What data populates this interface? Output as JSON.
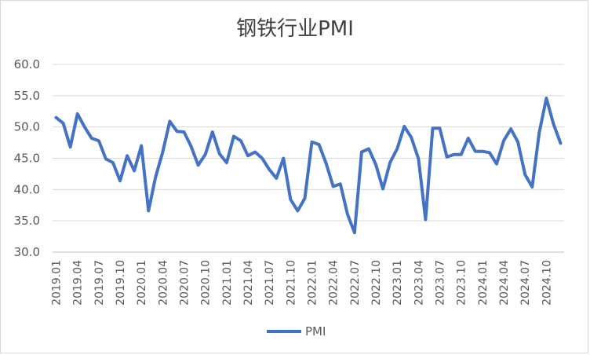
{
  "chart_data": {
    "type": "line",
    "title": "钢铁行业PMI",
    "xlabel": "",
    "ylabel": "",
    "ylim": [
      30,
      60
    ],
    "yticks": [
      "30.0",
      "35.0",
      "40.0",
      "45.0",
      "50.0",
      "55.0",
      "60.0"
    ],
    "grid": true,
    "legend_position": "bottom",
    "line_color": "#4472C4",
    "x": [
      "2019.01",
      "2019.02",
      "2019.03",
      "2019.04",
      "2019.05",
      "2019.06",
      "2019.07",
      "2019.08",
      "2019.09",
      "2019.10",
      "2019.11",
      "2019.12",
      "2020.01",
      "2020.02",
      "2020.03",
      "2020.04",
      "2020.05",
      "2020.06",
      "2020.07",
      "2020.08",
      "2020.09",
      "2020.10",
      "2020.11",
      "2020.12",
      "2021.01",
      "2021.02",
      "2021.03",
      "2021.04",
      "2021.05",
      "2021.06",
      "2021.07",
      "2021.08",
      "2021.09",
      "2021.10",
      "2021.11",
      "2021.12",
      "2022.01",
      "2022.02",
      "2022.03",
      "2022.04",
      "2022.05",
      "2022.06",
      "2022.07",
      "2022.08",
      "2022.09",
      "2022.10",
      "2022.11",
      "2022.12",
      "2023.01",
      "2023.02",
      "2023.03",
      "2023.04",
      "2023.05",
      "2023.06",
      "2023.07",
      "2023.08",
      "2023.09",
      "2023.10",
      "2023.11",
      "2023.12",
      "2024.01",
      "2024.02",
      "2024.03",
      "2024.04",
      "2024.05",
      "2024.06",
      "2024.07",
      "2024.08",
      "2024.09",
      "2024.10",
      "2024.11",
      "2024.12"
    ],
    "xtick_labels": [
      "2019.01",
      "2019.04",
      "2019.07",
      "2019.10",
      "2020.01",
      "2020.04",
      "2020.07",
      "2020.10",
      "2021.01",
      "2021.04",
      "2021.07",
      "2021.10",
      "2022.01",
      "2022.04",
      "2022.07",
      "2022.10",
      "2023.01",
      "2023.04",
      "2023.07",
      "2023.10",
      "2024.01",
      "2024.04",
      "2024.07",
      "2024.10"
    ],
    "series": [
      {
        "name": "PMI",
        "values": [
          51.5,
          50.6,
          46.8,
          52.1,
          50.0,
          48.2,
          47.8,
          44.9,
          44.3,
          41.4,
          45.4,
          43.0,
          47.0,
          36.6,
          42.0,
          46.0,
          50.9,
          49.3,
          49.2,
          46.9,
          43.9,
          45.6,
          49.2,
          45.7,
          44.3,
          48.5,
          47.8,
          45.4,
          46.0,
          45.0,
          43.2,
          41.8,
          45.0,
          38.4,
          36.6,
          38.6,
          47.6,
          47.2,
          44.2,
          40.5,
          40.9,
          36.1,
          33.1,
          46.0,
          46.5,
          44.0,
          40.1,
          44.3,
          46.5,
          50.1,
          48.3,
          44.9,
          35.2,
          49.8,
          49.8,
          45.2,
          45.6,
          45.6,
          48.2,
          46.1,
          46.1,
          45.9,
          44.1,
          47.8,
          49.7,
          47.6,
          42.4,
          40.4,
          49.1,
          54.6,
          50.5,
          47.4
        ]
      }
    ]
  }
}
